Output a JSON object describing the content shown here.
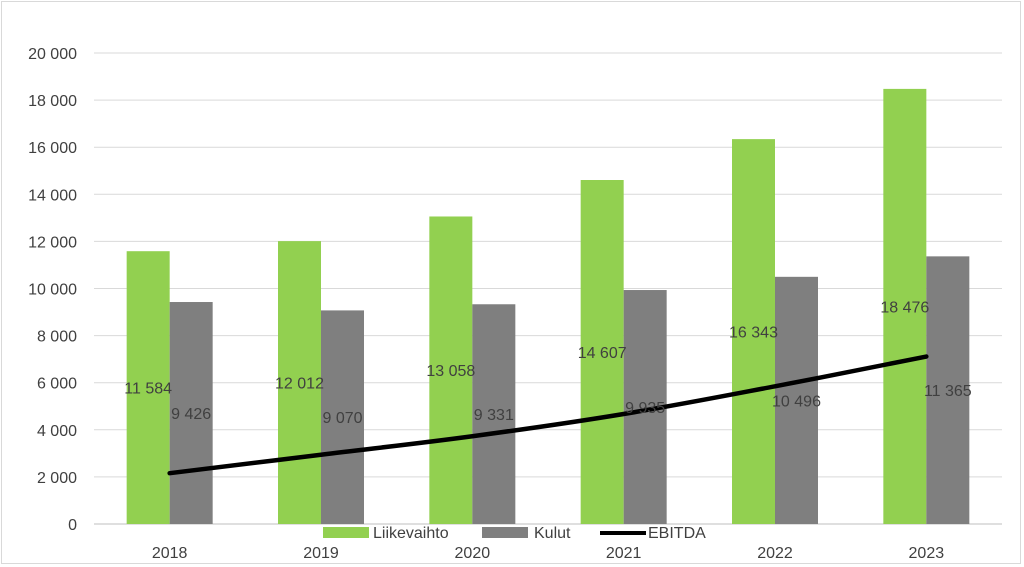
{
  "chart_data": {
    "type": "bar",
    "title": "",
    "xlabel": "",
    "ylabel": "",
    "categories": [
      "2018",
      "2019",
      "2020",
      "2021",
      "2022",
      "2023"
    ],
    "ylim": [
      0,
      20000
    ],
    "yticks": [
      0,
      2000,
      4000,
      6000,
      8000,
      10000,
      12000,
      14000,
      16000,
      18000,
      20000
    ],
    "ytick_labels": [
      "0",
      "2 000",
      "4 000",
      "6 000",
      "8 000",
      "10 000",
      "12 000",
      "14 000",
      "16 000",
      "18 000",
      "20 000"
    ],
    "grid": true,
    "legend_position": "bottom",
    "series": [
      {
        "name": "Liikevaihto",
        "type": "bar",
        "color": "#92d050",
        "values": [
          11584,
          12012,
          13058,
          14607,
          16343,
          18476
        ],
        "labels": [
          "11 584",
          "12 012",
          "13 058",
          "14 607",
          "16 343",
          "18 476"
        ]
      },
      {
        "name": "Kulut",
        "type": "bar",
        "color": "#7f7f7f",
        "values": [
          9426,
          9070,
          9331,
          9935,
          10496,
          11365
        ],
        "labels": [
          "9 426",
          "9 070",
          "9 331",
          "9 935",
          "10 496",
          "11 365"
        ]
      },
      {
        "name": "EBITDA",
        "type": "line",
        "color": "#000000",
        "values": [
          2158,
          2942,
          3727,
          4672,
          5847,
          7111
        ]
      }
    ]
  }
}
